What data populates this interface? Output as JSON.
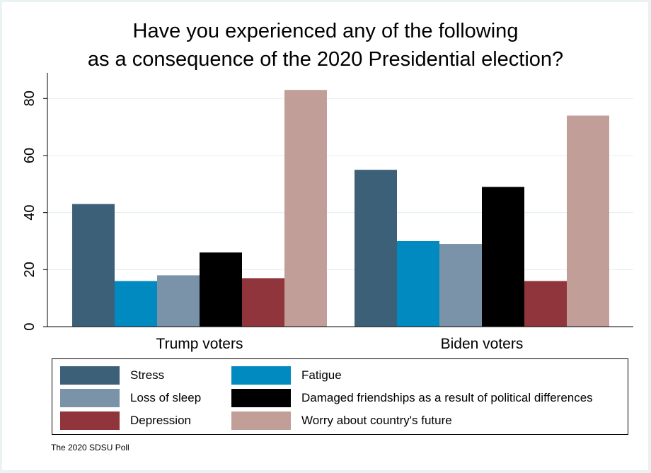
{
  "chart_data": {
    "type": "bar",
    "title_line1": "Have you experienced any of the following",
    "title_line2": "as a consequence of the 2020 Presidential election?",
    "categories": [
      "Trump voters",
      "Biden voters"
    ],
    "series": [
      {
        "name": "Stress",
        "color": "#3d6079",
        "values": [
          43,
          55
        ]
      },
      {
        "name": "Fatigue",
        "color": "#008abf",
        "values": [
          16,
          30
        ]
      },
      {
        "name": "Loss of sleep",
        "color": "#7b93a8",
        "values": [
          18,
          29
        ]
      },
      {
        "name": "Damaged friendships as a result of political differences",
        "color": "#000000",
        "values": [
          26,
          49
        ]
      },
      {
        "name": "Depression",
        "color": "#90353b",
        "values": [
          17,
          16
        ]
      },
      {
        "name": "Worry about country's future",
        "color": "#c19e97",
        "values": [
          83,
          74
        ]
      }
    ],
    "yticks": [
      0,
      20,
      40,
      60,
      80
    ],
    "ylim": [
      0,
      89
    ],
    "xlabel": "",
    "ylabel": "",
    "grid": true,
    "legend_position": "bottom"
  },
  "source_note": "The 2020 SDSU Poll"
}
